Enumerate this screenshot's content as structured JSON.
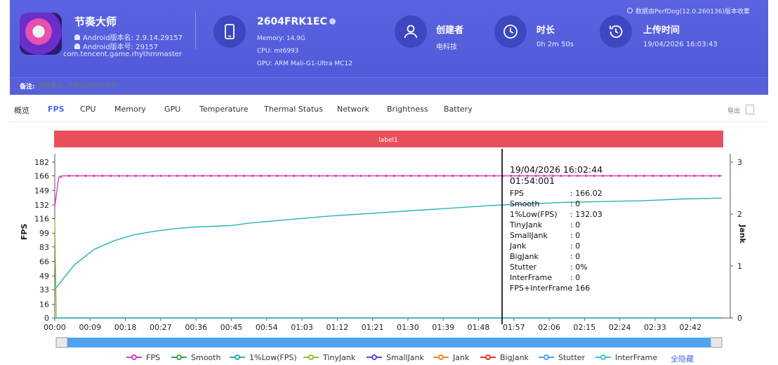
{
  "header": {
    "app": {
      "name": "节奏大师",
      "android_version": "Android版本名: 2.9.14.29157",
      "android_code": "Android版本号: 29157",
      "package": "com.tencent.game.rhythmmaster"
    },
    "device": {
      "name": "2604FRK1EC",
      "memory": "Memory: 14.9G",
      "cpu": "CPU: mt6993",
      "gpu": "GPU: ARM Mali-G1-Ultra MC12"
    },
    "creator": {
      "label": "创建者",
      "value": "电科技"
    },
    "duration": {
      "label": "时长",
      "value": "0h 2m 50s"
    },
    "upload": {
      "label": "上传时间",
      "value": "19/04/2026 16:03:43"
    },
    "source_note": "数据由PerfDog(12.0.260136)版本收集",
    "notes": {
      "label": "备注:",
      "placeholder": "添加备注, 不超过200个字符"
    }
  },
  "tabs": [
    {
      "label": "概览",
      "active": false
    },
    {
      "label": "FPS",
      "active": true
    },
    {
      "label": "CPU",
      "active": false
    },
    {
      "label": "Memory",
      "active": false
    },
    {
      "label": "GPU",
      "active": false
    },
    {
      "label": "Temperature",
      "active": false
    },
    {
      "label": "Thermal Status",
      "active": false
    },
    {
      "label": "Network",
      "active": false
    },
    {
      "label": "Brightness",
      "active": false
    },
    {
      "label": "Battery",
      "active": false
    }
  ],
  "export_label": "导出",
  "colors": {
    "header_bg": "#5760dc",
    "accent": "#4a67e8",
    "label_bar": "#e8505b",
    "fps": "#d83fc2",
    "low_fps": "#28b3b3",
    "scrollbar": "#4fa3f0"
  },
  "chart_data": {
    "type": "line",
    "label_bar": "label1",
    "ylabel": "FPS",
    "y2label": "Jank",
    "ylim": [
      0,
      182
    ],
    "y_ticks": [
      0,
      16,
      33,
      49,
      66,
      83,
      99,
      116,
      132,
      149,
      166,
      182
    ],
    "y2lim": [
      0,
      3
    ],
    "y2_ticks": [
      0,
      1,
      2,
      3
    ],
    "x_ticks": [
      "00:00",
      "00:09",
      "00:18",
      "00:27",
      "00:36",
      "00:45",
      "00:54",
      "01:03",
      "01:12",
      "01:21",
      "01:30",
      "01:39",
      "01:48",
      "01:57",
      "02:06",
      "02:15",
      "02:24",
      "02:33",
      "02:42"
    ],
    "x_range_seconds": [
      0,
      170
    ],
    "series": [
      {
        "name": "FPS",
        "color": "#d83fc2",
        "axis": "left",
        "x": [
          0,
          1,
          2,
          170
        ],
        "values": [
          130,
          164,
          166,
          166
        ]
      },
      {
        "name": "Smooth",
        "color": "#3aa84a",
        "axis": "left",
        "x": [
          0,
          170
        ],
        "values": [
          0,
          0
        ]
      },
      {
        "name": "1%Low(FPS)",
        "color": "#28b3b3",
        "axis": "left",
        "x": [
          0,
          2,
          5,
          10,
          15,
          20,
          25,
          30,
          35,
          40,
          45,
          50,
          55,
          60,
          70,
          80,
          90,
          100,
          110,
          114,
          120,
          130,
          140,
          150,
          160,
          170
        ],
        "values": [
          33,
          45,
          62,
          80,
          90,
          97,
          101,
          104,
          106,
          107,
          108,
          111,
          113,
          115,
          119,
          122,
          125,
          128,
          131,
          132,
          133,
          135,
          136,
          137,
          139,
          140
        ]
      },
      {
        "name": "TinyJank",
        "color": "#8dc63f",
        "axis": "right",
        "x": [
          0,
          0.4,
          170
        ],
        "values": [
          1.9,
          0,
          0
        ]
      },
      {
        "name": "SmallJank",
        "color": "#4b4fe0",
        "axis": "right",
        "x": [
          0,
          170
        ],
        "values": [
          0,
          0
        ]
      },
      {
        "name": "Jank",
        "color": "#f08a24",
        "axis": "right",
        "x": [
          0,
          170
        ],
        "values": [
          0,
          0
        ]
      },
      {
        "name": "BigJank",
        "color": "#e0342f",
        "axis": "right",
        "x": [
          0,
          170
        ],
        "values": [
          0,
          0
        ]
      },
      {
        "name": "Stutter",
        "color": "#4fa3f0",
        "axis": "right",
        "x": [
          0,
          170
        ],
        "values": [
          0,
          0
        ]
      },
      {
        "name": "InterFrame",
        "color": "#39c7d4",
        "axis": "right",
        "x": [
          0,
          170
        ],
        "values": [
          0,
          0
        ]
      }
    ],
    "legend_position": "bottom",
    "hide_all_label": "全隐藏",
    "cursor": {
      "x_seconds": 114,
      "timestamp": "19/04/2026 16:02:44",
      "elapsed": "01:54:001",
      "rows": [
        {
          "key": "FPS",
          "value": ": 166.02"
        },
        {
          "key": "Smooth",
          "value": ": 0"
        },
        {
          "key": "1%Low(FPS)",
          "value": ": 132.03"
        },
        {
          "key": "TinyJank",
          "value": ": 0"
        },
        {
          "key": "SmallJank",
          "value": ": 0"
        },
        {
          "key": "Jank",
          "value": ": 0"
        },
        {
          "key": "BigJank",
          "value": ": 0"
        },
        {
          "key": "Stutter",
          "value": ": 0%"
        },
        {
          "key": "InterFrame",
          "value": ": 0"
        },
        {
          "key": "FPS+InterFrame",
          "value": ": 166"
        }
      ]
    }
  }
}
